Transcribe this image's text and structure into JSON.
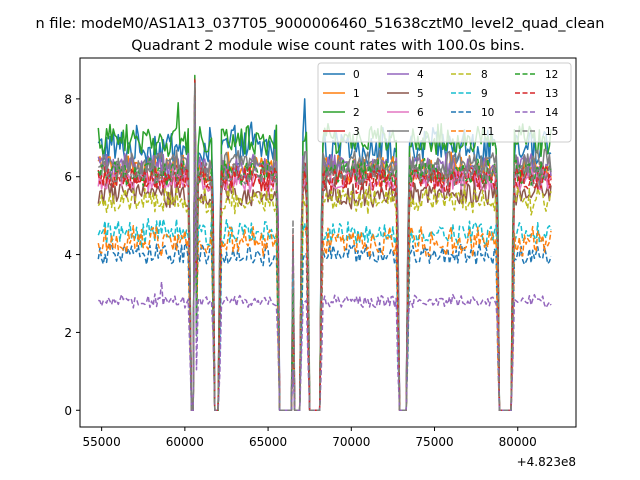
{
  "figure": {
    "suptitle": "n file: modeM0/AS1A13_037T05_9000006460_51638cztM0_level2_quad_clean"
  },
  "chart_data": {
    "type": "line",
    "title": "Quadrant 2 module wise count rates with 100.0s bins.",
    "xlabel": "",
    "ylabel": "",
    "x_offset_label": "+4.823e8",
    "xlim": [
      53700,
      83500
    ],
    "ylim": [
      -0.43,
      9.05
    ],
    "x_ticks": [
      55000,
      60000,
      65000,
      70000,
      75000,
      80000
    ],
    "x_tick_labels": [
      "55000",
      "60000",
      "65000",
      "70000",
      "75000",
      "80000"
    ],
    "y_ticks": [
      0,
      2,
      4,
      6,
      8
    ],
    "y_tick_labels": [
      "0",
      "2",
      "4",
      "6",
      "8"
    ],
    "grid": false,
    "legend_position": "upper right",
    "legend_columns": 4,
    "time_range": [
      54800,
      82000
    ],
    "bin_width": 100,
    "gaps": [
      {
        "start": 60400,
        "end": 60600
      },
      {
        "start": 61800,
        "end": 62000
      },
      {
        "start": 65700,
        "end": 66400
      },
      {
        "start": 66600,
        "end": 66900
      },
      {
        "start": 67500,
        "end": 68100
      },
      {
        "start": 72900,
        "end": 73300
      },
      {
        "start": 78900,
        "end": 79600
      }
    ],
    "series": [
      {
        "name": "0",
        "base": 6.75,
        "noise": 0.45,
        "color": "#1f77b4",
        "dash": "solid",
        "spikes": [
          [
            60600,
            8.5
          ],
          [
            67200,
            8.0
          ],
          [
            64000,
            7.4
          ]
        ]
      },
      {
        "name": "1",
        "base": 6.2,
        "noise": 0.35,
        "color": "#ff7f0e",
        "dash": "solid",
        "spikes": [
          [
            60600,
            8.4
          ]
        ]
      },
      {
        "name": "2",
        "base": 6.95,
        "noise": 0.35,
        "color": "#2ca02c",
        "dash": "solid",
        "spikes": [
          [
            60600,
            8.6
          ],
          [
            59600,
            7.9
          ]
        ]
      },
      {
        "name": "3",
        "base": 6.0,
        "noise": 0.3,
        "color": "#d62728",
        "dash": "solid",
        "spikes": [
          [
            60600,
            8.5
          ]
        ]
      },
      {
        "name": "4",
        "base": 6.25,
        "noise": 0.3,
        "color": "#9467bd",
        "dash": "solid",
        "spikes": [
          [
            60600,
            8.4
          ]
        ]
      },
      {
        "name": "5",
        "base": 5.55,
        "noise": 0.3,
        "color": "#8c564b",
        "dash": "solid",
        "spikes": [
          [
            60600,
            8.3
          ]
        ]
      },
      {
        "name": "6",
        "base": 5.9,
        "noise": 0.3,
        "color": "#e377c2",
        "dash": "solid",
        "spikes": [
          [
            60600,
            8.4
          ]
        ]
      },
      {
        "name": "7",
        "base": 6.35,
        "noise": 0.3,
        "color": "#7f7f7f",
        "dash": "solid",
        "spikes": [
          [
            60600,
            8.4
          ]
        ]
      },
      {
        "name": "8",
        "base": 5.4,
        "noise": 0.3,
        "color": "#bcbd22",
        "dash": "dashed",
        "spikes": [
          [
            60600,
            8.3
          ]
        ]
      },
      {
        "name": "9",
        "base": 4.55,
        "noise": 0.3,
        "color": "#17becf",
        "dash": "dashed",
        "spikes": [
          [
            60600,
            8.2
          ]
        ]
      },
      {
        "name": "10",
        "base": 4.0,
        "noise": 0.25,
        "color": "#1f77b4",
        "dash": "dashed",
        "spikes": [
          [
            60600,
            8.2
          ]
        ]
      },
      {
        "name": "11",
        "base": 4.35,
        "noise": 0.35,
        "color": "#ff7f0e",
        "dash": "dashed",
        "spikes": [
          [
            60600,
            8.2
          ]
        ]
      },
      {
        "name": "12",
        "base": 6.1,
        "noise": 0.3,
        "color": "#2ca02c",
        "dash": "dashed",
        "spikes": [
          [
            60600,
            8.5
          ]
        ]
      },
      {
        "name": "13",
        "base": 5.95,
        "noise": 0.3,
        "color": "#d62728",
        "dash": "dashed",
        "spikes": [
          [
            60600,
            8.5
          ]
        ]
      },
      {
        "name": "14",
        "base": 2.8,
        "noise": 0.15,
        "color": "#9467bd",
        "dash": "dashed",
        "spikes": [
          [
            60600,
            8.0
          ],
          [
            58600,
            3.3
          ]
        ]
      },
      {
        "name": "15",
        "base": 6.1,
        "noise": 0.3,
        "color": "#7f7f7f",
        "dash": "dashed",
        "spikes": [
          [
            60600,
            8.4
          ]
        ]
      }
    ]
  }
}
